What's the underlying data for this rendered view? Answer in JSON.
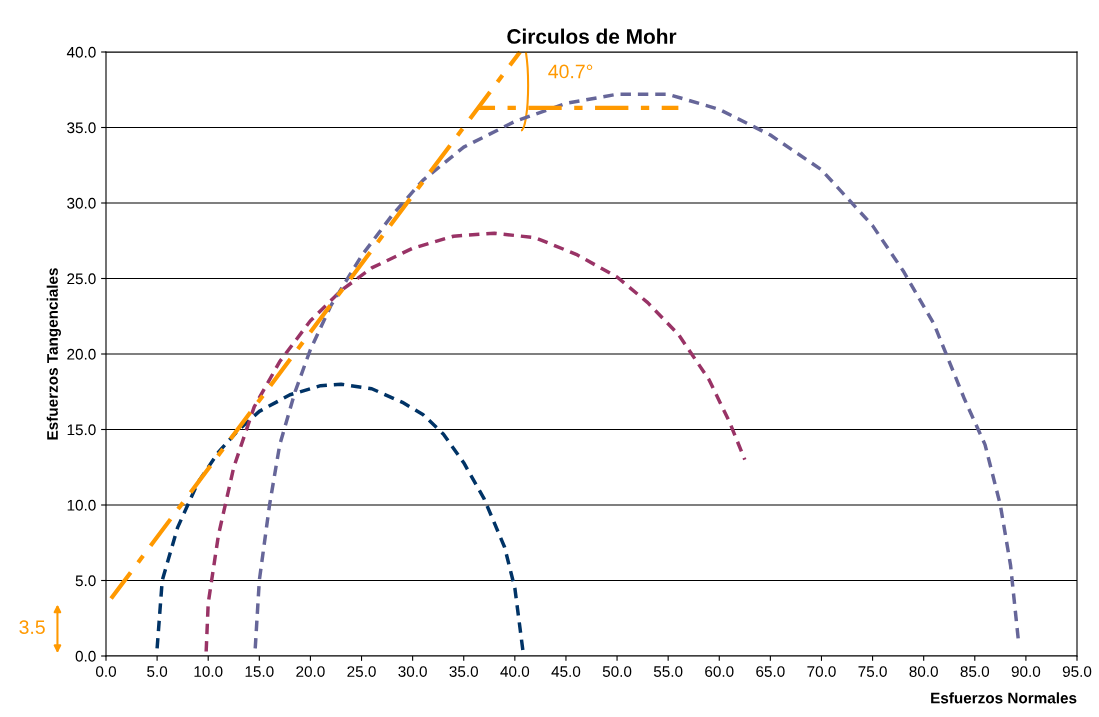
{
  "chart_data": {
    "type": "line",
    "title": "Circulos de Mohr",
    "xlabel": "Esfuerzos Normales",
    "ylabel": "Esfuerzos Tangenciales",
    "grid": "y",
    "legend": false,
    "line_style": "dashed",
    "marker": "none",
    "xlim": [
      0,
      95
    ],
    "ylim": [
      0,
      40
    ],
    "xticks": [
      {
        "value": 0,
        "label": "0.0"
      },
      {
        "value": 5,
        "label": "5.0"
      },
      {
        "value": 10,
        "label": "10.0"
      },
      {
        "value": 15,
        "label": "15.0"
      },
      {
        "value": 20,
        "label": "20.0"
      },
      {
        "value": 25,
        "label": "25.0"
      },
      {
        "value": 30,
        "label": "30.0"
      },
      {
        "value": 35,
        "label": "35.0"
      },
      {
        "value": 40,
        "label": "40.0"
      },
      {
        "value": 45,
        "label": "45.0"
      },
      {
        "value": 50,
        "label": "50.0"
      },
      {
        "value": 55,
        "label": "55.0"
      },
      {
        "value": 60,
        "label": "60.0"
      },
      {
        "value": 65,
        "label": "65.0"
      },
      {
        "value": 70,
        "label": "70.0"
      },
      {
        "value": 75,
        "label": "75.0"
      },
      {
        "value": 80,
        "label": "80.0"
      },
      {
        "value": 85,
        "label": "85.0"
      },
      {
        "value": 90,
        "label": "90.0"
      },
      {
        "value": 95,
        "label": "95.0"
      }
    ],
    "yticks": [
      {
        "value": 0,
        "label": "0.0"
      },
      {
        "value": 5,
        "label": "5.0"
      },
      {
        "value": 10,
        "label": "10.0"
      },
      {
        "value": 15,
        "label": "15.0"
      },
      {
        "value": 20,
        "label": "20.0"
      },
      {
        "value": 25,
        "label": "25.0"
      },
      {
        "value": 30,
        "label": "30.0"
      },
      {
        "value": 35,
        "label": "35.0"
      },
      {
        "value": 40,
        "label": "40.0"
      }
    ],
    "series": [
      {
        "color": "#003366",
        "x": [
          5,
          5.5,
          7,
          9,
          11,
          13,
          15,
          18,
          21,
          23,
          26,
          29,
          31,
          33,
          35,
          37,
          39,
          40,
          40.8
        ],
        "values": [
          0.5,
          5,
          8.5,
          11.5,
          13.5,
          15,
          16.2,
          17.3,
          17.9,
          18,
          17.7,
          16.8,
          16,
          14.7,
          12.8,
          10.4,
          7.2,
          4.5,
          0.3
        ]
      },
      {
        "color": "#993366",
        "x": [
          9.8,
          10,
          11,
          12.5,
          14.5,
          17,
          20,
          23,
          26,
          30,
          34,
          38,
          42,
          46,
          50,
          53,
          56,
          59,
          61,
          62.5
        ],
        "values": [
          0.3,
          3.5,
          8,
          12.5,
          16.5,
          19.5,
          22.2,
          24.2,
          25.7,
          27,
          27.8,
          28,
          27.7,
          26.6,
          25.1,
          23.4,
          21.3,
          18.3,
          15.5,
          13
        ]
      },
      {
        "color": "#666699",
        "x": [
          14.6,
          15,
          16,
          17,
          18.5,
          20,
          22,
          25,
          28,
          31,
          35,
          40,
          45,
          50,
          55,
          60,
          65,
          70,
          75,
          78,
          81,
          84,
          86,
          87.5,
          88.5,
          89.3
        ],
        "values": [
          0.5,
          5,
          10,
          14,
          17.5,
          20.3,
          23.2,
          26.5,
          29.2,
          31.5,
          33.7,
          35.4,
          36.6,
          37.2,
          37.2,
          36.2,
          34.5,
          32.2,
          28.5,
          25.5,
          22,
          17,
          14,
          10,
          6,
          0.8
        ]
      },
      {
        "color": "#ff9900",
        "line_style": "dashdot",
        "x": [
          0.5,
          40.5
        ],
        "values": [
          3.8,
          40
        ]
      },
      {
        "color": "#ff9900",
        "line_style": "dashdot",
        "x": [
          36.5,
          56
        ],
        "values": [
          36.3,
          36.3
        ]
      }
    ],
    "annotations": [
      "40.7°",
      "3.5"
    ]
  }
}
